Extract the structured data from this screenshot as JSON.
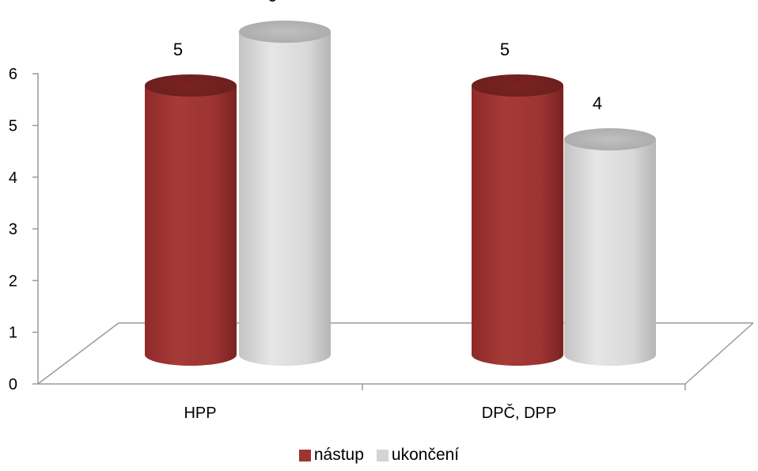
{
  "chart_data": {
    "type": "bar",
    "categories": [
      "HPP",
      "DPČ, DPP"
    ],
    "series": [
      {
        "name": "nástup",
        "values": [
          5,
          5
        ],
        "color": "#9E3533"
      },
      {
        "name": "ukončení",
        "values": [
          6,
          4
        ],
        "color": "#D4D4D4"
      }
    ],
    "y_ticks": [
      "0",
      "1",
      "2",
      "3",
      "4",
      "5",
      "6"
    ],
    "ylim": [
      0,
      6
    ],
    "style": "3d-cylinder",
    "legend_position": "bottom",
    "grid": false
  }
}
